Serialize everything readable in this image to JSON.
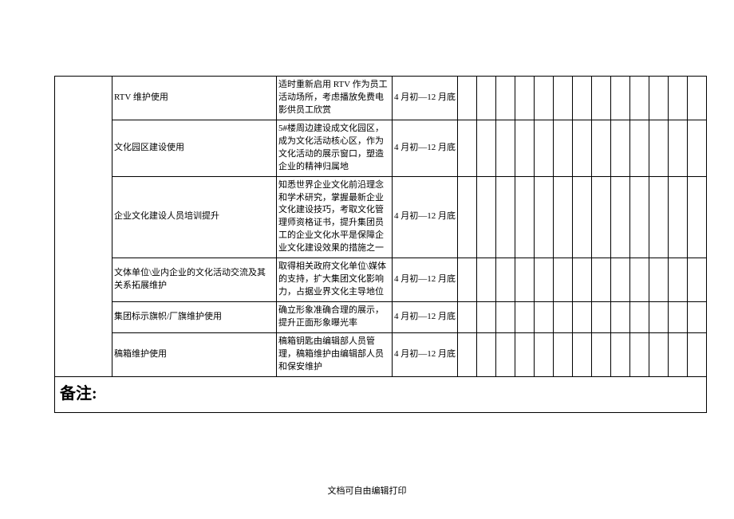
{
  "table": {
    "columns": {
      "c1_width": 72,
      "c2_width": 206,
      "c3_width": 145,
      "c4_width": 82,
      "narrow_count": 13,
      "narrow_width": 24
    },
    "border_color": "#000000",
    "background_color": "#ffffff",
    "text_color": "#000000",
    "font_size_body": 11,
    "font_size_remark": 20,
    "rows": [
      {
        "item": "RTV 维护使用",
        "desc": "适时重新启用 RTV 作为员工活动场所，考虑播放免费电影供员工欣赏",
        "period": "4 月初—12 月底"
      },
      {
        "item": "文化园区建设使用",
        "desc": "5#楼周边建设成文化园区，成为文化活动核心区，作为文化活动的展示窗口，塑造企业的精神归属地",
        "period": "4 月初—12 月底"
      },
      {
        "item": "企业文化建设人员培训提升",
        "desc": "知悉世界企业文化前沿理念和学术研究，掌握最新企业文化建设技巧，考取文化管理师资格证书，提升集团员工的企业文化水平是保障企业文化建设效果的措施之一",
        "period": "4 月初—12 月底"
      },
      {
        "item": "文体单位\\业内企业的文化活动交流及其关系拓展维护",
        "desc": "取得相关政府文化单位\\媒体的支持，扩大集团文化影响力，占据业界文化主导地位",
        "period": "4 月初—12 月底"
      },
      {
        "item": "集团标示旗帜/厂旗维护使用",
        "desc": "确立形象准确合理的展示，提升正面形象曝光率",
        "period": "4 月初—12 月底"
      },
      {
        "item": "稿箱维护使用",
        "desc": "稿箱钥匙由编辑部人员管理，稿箱维护由编辑部人员和保安维护",
        "period": "4 月初—12 月底"
      }
    ],
    "remark_label": "备注:"
  },
  "footer": "文档可自由编辑打印"
}
